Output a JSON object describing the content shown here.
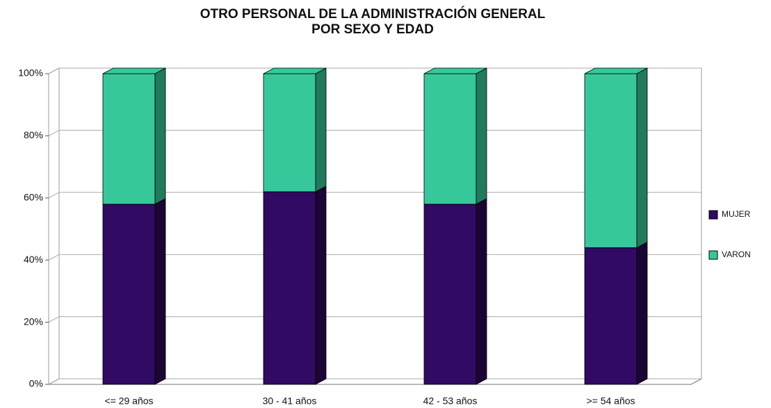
{
  "chart_data": {
    "type": "stacked_bar_3d",
    "title": "OTRO PERSONAL DE LA ADMINISTRACIÓN GENERAL",
    "subtitle": "POR SEXO Y EDAD",
    "categories": [
      "<= 29 años",
      "30 - 41 años",
      "42 - 53 años",
      ">= 54 años"
    ],
    "series": [
      {
        "name": "MUJER",
        "color": "#310a63",
        "side_color": "#1a0535",
        "values": [
          58,
          62,
          58,
          44
        ]
      },
      {
        "name": "VARON",
        "color": "#36c89b",
        "side_color": "#217a5d",
        "values": [
          42,
          38,
          42,
          56
        ]
      }
    ],
    "ylim": [
      0,
      100
    ],
    "yticks": [
      {
        "value": 0,
        "label": "0%"
      },
      {
        "value": 20,
        "label": "20%"
      },
      {
        "value": 40,
        "label": "40%"
      },
      {
        "value": 60,
        "label": "60%"
      },
      {
        "value": 80,
        "label": "80%"
      },
      {
        "value": 100,
        "label": "100%"
      }
    ],
    "grid": true,
    "legend": "right"
  }
}
